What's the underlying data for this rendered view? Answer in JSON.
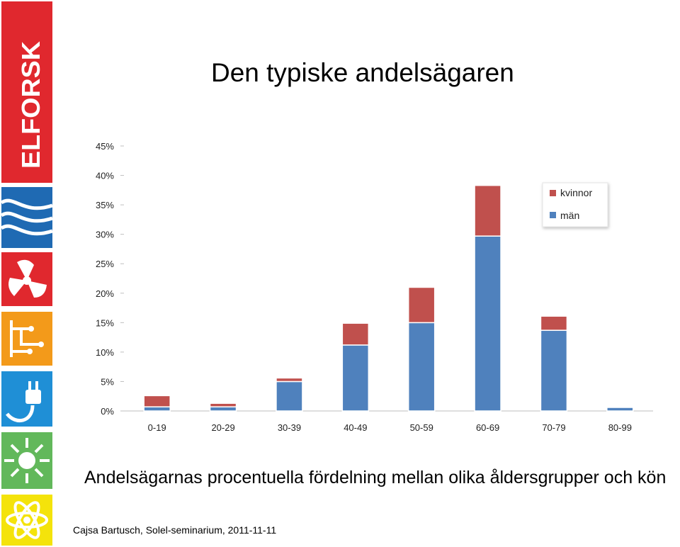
{
  "slide": {
    "title": "Den typiske andelsägaren",
    "caption": "Andelsägarnas procentuella fördelning mellan olika åldersgrupper och kön",
    "footer": "Cajsa Bartusch, Solel-seminarium,  2011-11-11",
    "logo_text": "ELFORSK"
  },
  "sidebar_icons": [
    "elforsk-logo",
    "waves-icon",
    "fan-icon",
    "circuit-icon",
    "plug-icon",
    "sun-icon",
    "atom-icon"
  ],
  "colors": {
    "man": "#4f81bd",
    "kvinnor": "#c0504d",
    "brand_red": "#e0282e",
    "brand_blue": "#1f6ab3",
    "brand_orange": "#f39a1a",
    "brand_green": "#62b85b",
    "brand_yellow": "#f4e30b"
  },
  "chart_data": {
    "type": "bar",
    "stacked": true,
    "categories": [
      "0-19",
      "20-29",
      "30-39",
      "40-49",
      "50-59",
      "60-69",
      "70-79",
      "80-99"
    ],
    "series": [
      {
        "name": "män",
        "values": [
          0.7,
          0.7,
          5.0,
          11.2,
          15.0,
          29.7,
          13.7,
          0.6
        ]
      },
      {
        "name": "kvinnor",
        "values": [
          1.9,
          0.6,
          0.6,
          3.7,
          6.0,
          8.6,
          2.4,
          0.0
        ]
      }
    ],
    "y_ticks": [
      "0%",
      "5%",
      "10%",
      "15%",
      "20%",
      "25%",
      "30%",
      "35%",
      "40%",
      "45%"
    ],
    "ylim": [
      0,
      45
    ],
    "legend": {
      "entries": [
        "kvinnor",
        "män"
      ],
      "placement": "top-right"
    },
    "grid": false
  }
}
